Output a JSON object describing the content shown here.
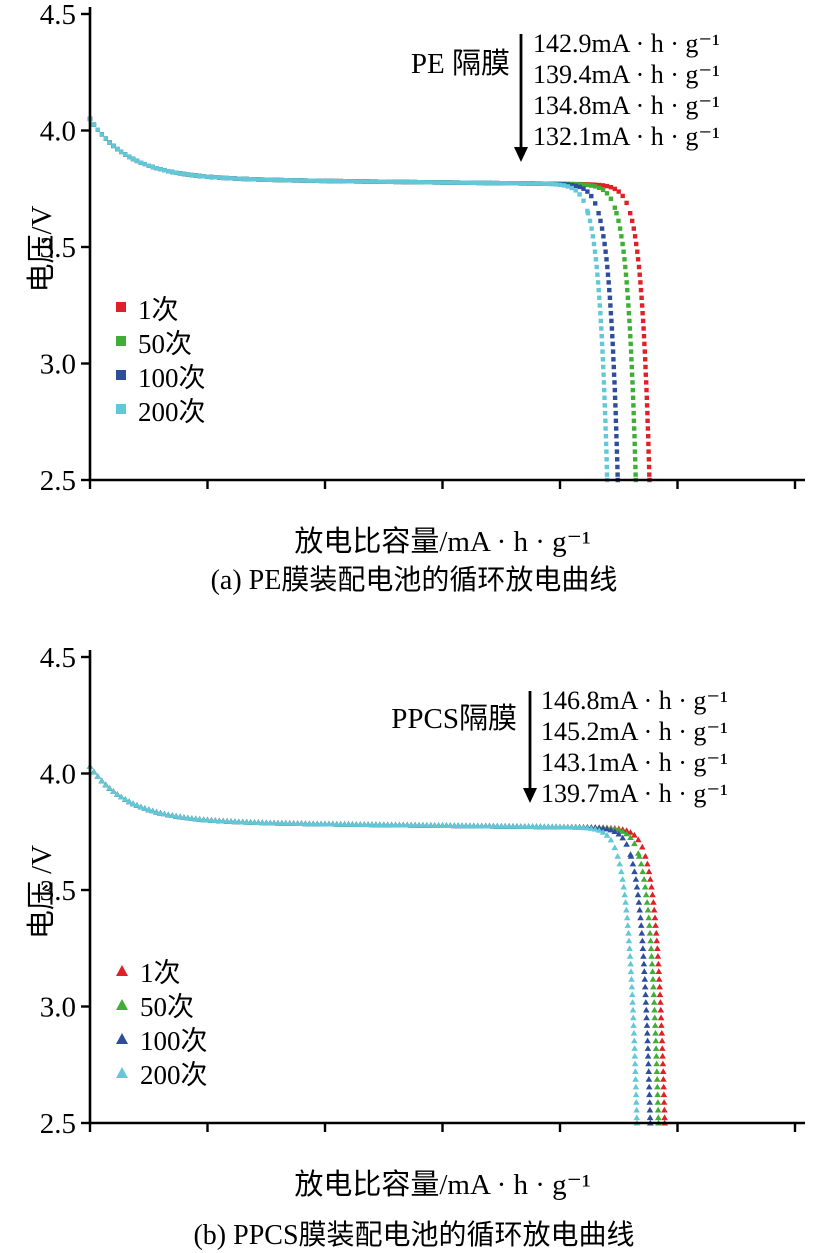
{
  "chart_data": [
    {
      "type": "scatter",
      "panel": "a",
      "separator_label": "PE 隔膜",
      "marker": "square",
      "xlabel": "放电比容量/mA · h · g⁻¹",
      "ylabel": "电压/V",
      "caption": "(a) PE膜装配电池的循环放电曲线",
      "xlim": [
        0,
        180
      ],
      "ylim": [
        2.5,
        4.5
      ],
      "x_ticks": [
        0,
        30,
        60,
        90,
        120,
        150,
        180
      ],
      "y_ticks": [
        "2.5",
        "3.0",
        "3.5",
        "4.0",
        "4.5"
      ],
      "start_voltage": 4.05,
      "plateau_voltage": 3.8,
      "series": [
        {
          "name": "1次",
          "color": "#df2127",
          "discharge_capacity": 142.9
        },
        {
          "name": "50次",
          "color": "#3fae37",
          "discharge_capacity": 139.4
        },
        {
          "name": "100次",
          "color": "#2e4d9d",
          "discharge_capacity": 134.8
        },
        {
          "name": "200次",
          "color": "#62c8d8",
          "discharge_capacity": 132.1
        }
      ],
      "annotations": [
        "142.9mA · h · g⁻¹",
        "139.4mA · h · g⁻¹",
        "134.8mA · h · g⁻¹",
        "132.1mA · h · g⁻¹"
      ]
    },
    {
      "type": "scatter",
      "panel": "b",
      "separator_label": "PPCS隔膜",
      "marker": "triangle",
      "xlabel": "放电比容量/mA · h · g⁻¹",
      "ylabel": "电压 /V",
      "caption": "(b) PPCS膜装配电池的循环放电曲线",
      "xlim": [
        0,
        180
      ],
      "ylim": [
        2.5,
        4.5
      ],
      "x_ticks": [
        0,
        30,
        60,
        90,
        120,
        150,
        180
      ],
      "y_ticks": [
        "2.5",
        "3.0",
        "3.5",
        "4.0",
        "4.5"
      ],
      "start_voltage": 4.03,
      "plateau_voltage": 3.8,
      "series": [
        {
          "name": "1次",
          "color": "#df2127",
          "discharge_capacity": 146.8
        },
        {
          "name": "50次",
          "color": "#3fae37",
          "discharge_capacity": 145.2
        },
        {
          "name": "100次",
          "color": "#2e4d9d",
          "discharge_capacity": 143.1
        },
        {
          "name": "200次",
          "color": "#62c8d8",
          "discharge_capacity": 139.7
        }
      ],
      "annotations": [
        "146.8mA · h · g⁻¹",
        "145.2mA · h · g⁻¹",
        "143.1mA · h · g⁻¹",
        "139.7mA · h · g⁻¹"
      ]
    }
  ]
}
